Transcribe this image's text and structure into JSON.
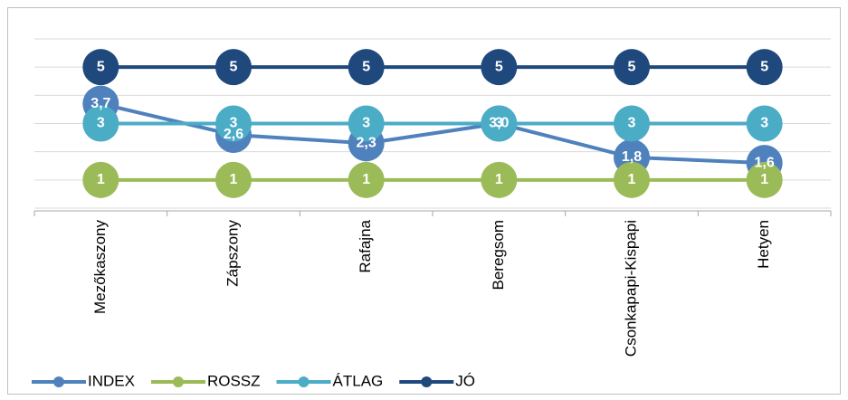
{
  "chart_data": {
    "type": "line",
    "categories": [
      "Mezőkaszony",
      "Zápszony",
      "Rafajna",
      "Beregsom",
      "Csonkapapi-Kispapi",
      "Hetyen"
    ],
    "series": [
      {
        "name": "INDEX",
        "color": "#4f81bd",
        "values": [
          3.7,
          2.6,
          2.3,
          3.0,
          1.8,
          1.6
        ],
        "value_labels": [
          "3,7",
          "2,6",
          "2,3",
          "3,0",
          "1,8",
          "1,6"
        ]
      },
      {
        "name": "ROSSZ",
        "color": "#9bbb59",
        "values": [
          1,
          1,
          1,
          1,
          1,
          1
        ]
      },
      {
        "name": "ÁTLAG",
        "color": "#4bacc6",
        "values": [
          3,
          3,
          3,
          3,
          3,
          3
        ]
      },
      {
        "name": "JÓ",
        "color": "#1f497d",
        "values": [
          5,
          5,
          5,
          5,
          5,
          5
        ]
      }
    ],
    "ylim": [
      0,
      6
    ],
    "yticks": [
      0,
      1,
      2,
      3,
      4,
      5,
      6
    ],
    "grid": true,
    "show_ytick_labels": false,
    "legend": "bottom-left"
  }
}
